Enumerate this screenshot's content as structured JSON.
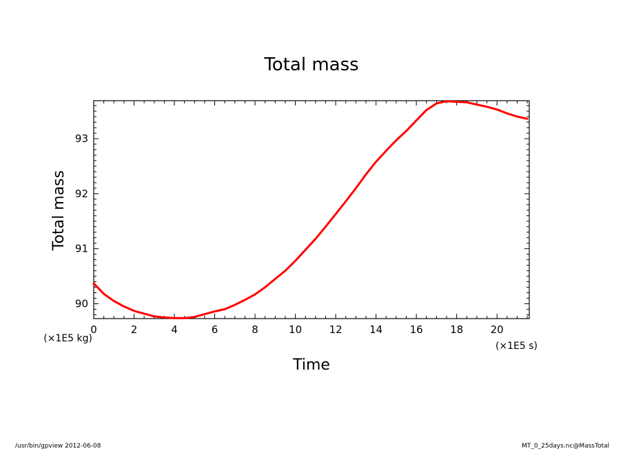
{
  "chart_data": {
    "type": "line",
    "title": "Total mass",
    "xlabel": "Time",
    "ylabel": "Total mass",
    "x_unit": "(×1E5 s)",
    "y_unit": "(×1E5 kg)",
    "xlim": [
      0,
      21.6
    ],
    "ylim": [
      89.73,
      93.69
    ],
    "x_ticks": [
      0,
      2,
      4,
      6,
      8,
      10,
      12,
      14,
      16,
      18,
      20
    ],
    "y_ticks": [
      90,
      91,
      92,
      93
    ],
    "series": [
      {
        "color": "#ff0000",
        "x": [
          0,
          0.5,
          1,
          1.5,
          2,
          2.5,
          3,
          3.5,
          4,
          4.5,
          5,
          5.5,
          6,
          6.5,
          7,
          7.5,
          8,
          8.5,
          9,
          9.5,
          10,
          10.5,
          11,
          11.5,
          12,
          12.5,
          13,
          13.5,
          14,
          14.5,
          15,
          15.5,
          16,
          16.5,
          17,
          17.5,
          18,
          18.5,
          19,
          19.5,
          20,
          20.5,
          21,
          21.5
        ],
        "y": [
          90.37,
          90.18,
          90.05,
          89.95,
          89.87,
          89.82,
          89.77,
          89.75,
          89.74,
          89.74,
          89.76,
          89.81,
          89.86,
          89.9,
          89.98,
          90.07,
          90.17,
          90.3,
          90.45,
          90.6,
          90.78,
          90.98,
          91.18,
          91.4,
          91.63,
          91.86,
          92.1,
          92.35,
          92.58,
          92.78,
          92.97,
          93.14,
          93.33,
          93.52,
          93.64,
          93.68,
          93.67,
          93.66,
          93.62,
          93.58,
          93.53,
          93.46,
          93.4,
          93.36
        ]
      }
    ]
  },
  "footer": {
    "left": "/usr/bin/gpview   2012-06-08",
    "right": "MT_0_25days.nc@MassTotal"
  }
}
